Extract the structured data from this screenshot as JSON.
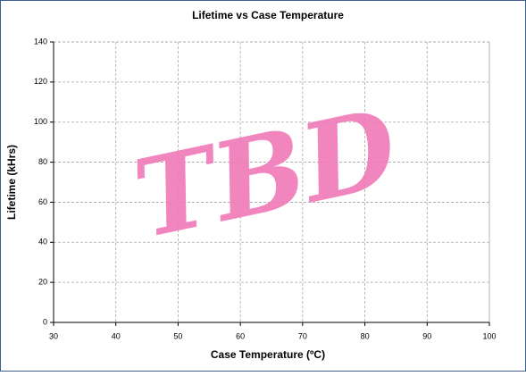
{
  "chart_data": {
    "type": "line",
    "title": "Lifetime vs Case Temperature",
    "x_label": "Case Temperature (ºC)",
    "y_label": "Lifetime (kHrs)",
    "annotation": "TBD",
    "series": [],
    "xlim": [
      30,
      100
    ],
    "xticks": [
      30,
      40,
      50,
      60,
      70,
      80,
      90,
      100
    ],
    "ylim": [
      0,
      140
    ],
    "yticks": [
      0,
      20,
      40,
      60,
      80,
      100,
      120,
      140
    ],
    "grid": true
  }
}
